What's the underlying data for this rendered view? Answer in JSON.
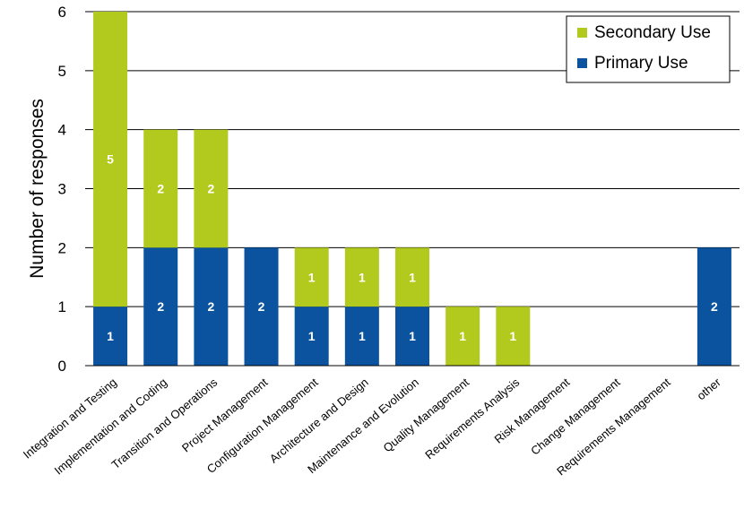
{
  "chart_data": {
    "type": "bar",
    "stacked": true,
    "categories": [
      "Integration and Testing",
      "Implementation and Coding",
      "Transition and Operations",
      "Project Management",
      "Configuration Management",
      "Architecture and Design",
      "Maintenance and Evolution",
      "Quality Management",
      "Requirements Analysis",
      "Risk Management",
      "Change Management",
      "Requirements Management",
      "other"
    ],
    "series": [
      {
        "name": "Primary Use",
        "color": "#0b539e",
        "values": [
          1,
          2,
          2,
          2,
          1,
          1,
          1,
          0,
          0,
          0,
          0,
          0,
          2
        ]
      },
      {
        "name": "Secondary Use",
        "color": "#b2c91d",
        "values": [
          5,
          2,
          2,
          0,
          1,
          1,
          1,
          1,
          1,
          0,
          0,
          0,
          0
        ]
      }
    ],
    "title": "",
    "xlabel": "",
    "ylabel": "Number of responses",
    "ylim": [
      0,
      6
    ],
    "yticks": [
      0,
      1,
      2,
      3,
      4,
      5,
      6
    ],
    "grid": true,
    "legend": {
      "placement": "top-right",
      "order": [
        "Secondary Use",
        "Primary Use"
      ]
    }
  }
}
